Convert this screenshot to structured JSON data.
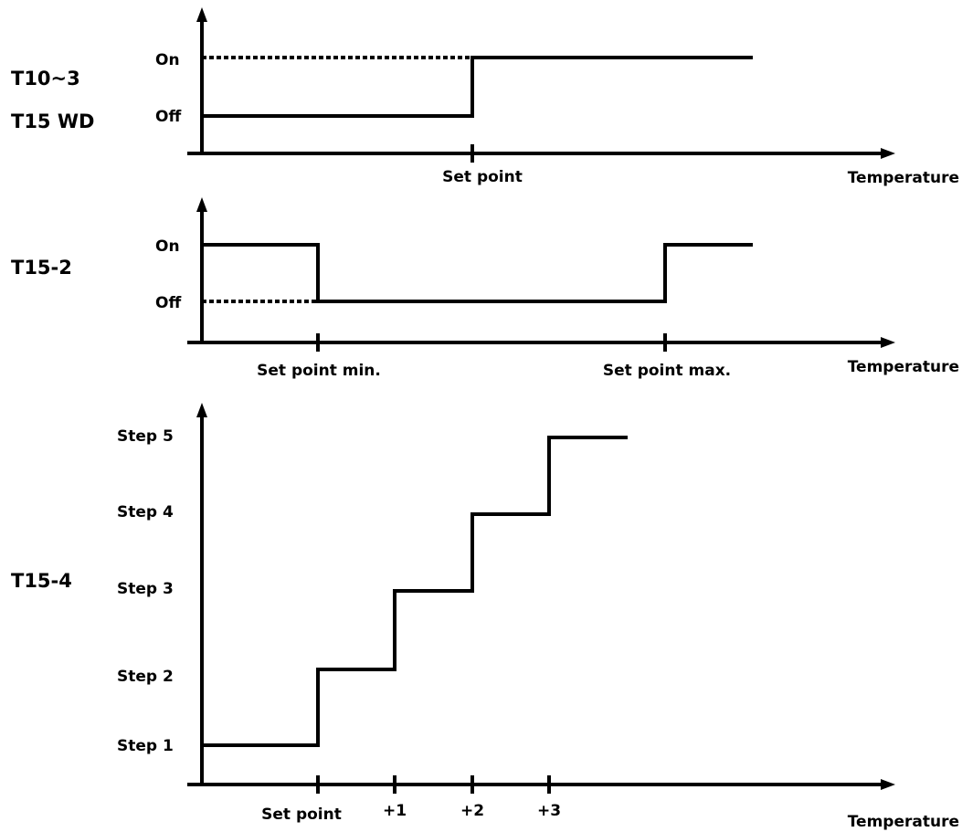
{
  "panel_1": {
    "device_label_line1": "T10~3",
    "device_label_line2": "T15 WD",
    "level_on": "On",
    "level_off": "Off",
    "tick_setpoint": "Set point",
    "x_axis_label": "Temperature"
  },
  "panel_2": {
    "device_label": "T15-2",
    "level_on": "On",
    "level_off": "Off",
    "tick_setpoint_min": "Set point min.",
    "tick_setpoint_max": "Set point max.",
    "x_axis_label": "Temperature"
  },
  "panel_3": {
    "device_label": "T15-4",
    "levels": [
      "Step 1",
      "Step 2",
      "Step 3",
      "Step 4",
      "Step 5"
    ],
    "ticks": [
      "Set point",
      "+1",
      "+2",
      "+3"
    ],
    "x_axis_label": "Temperature"
  }
}
